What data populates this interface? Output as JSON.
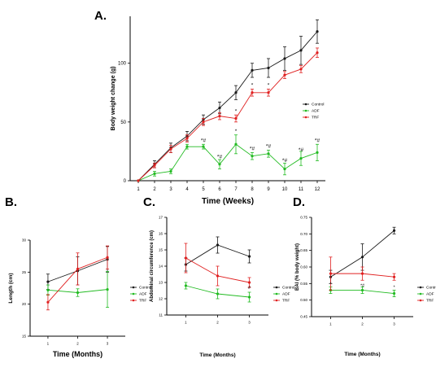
{
  "colors": {
    "Control": "#1a1a1a",
    "ADF": "#22bb22",
    "TRF": "#e02020"
  },
  "chart_data": [
    {
      "panel": "A.",
      "type": "line",
      "xlabel": "Time (Weeks)",
      "ylabel": "Body weight change (g)",
      "x": [
        "1",
        "2",
        "3",
        "4",
        "5",
        "6",
        "7",
        "8",
        "9",
        "10",
        "11",
        "12"
      ],
      "ylim": [
        0,
        140
      ],
      "yticks": [
        "0",
        "50",
        "100"
      ],
      "ytick_values": [
        0,
        50,
        100
      ],
      "legend": "right",
      "series": [
        {
          "name": "Control",
          "values": [
            0,
            14,
            28,
            38,
            52,
            62,
            75,
            94,
            96,
            104,
            111,
            127
          ],
          "errors": [
            0,
            3,
            4,
            4,
            4,
            5,
            6,
            6,
            8,
            10,
            12,
            10
          ]
        },
        {
          "name": "ADF",
          "values": [
            0,
            6,
            8,
            29,
            29,
            14,
            31,
            21,
            23,
            10,
            19,
            24
          ],
          "errors": [
            0,
            2,
            2,
            2,
            2,
            4,
            8,
            3,
            3,
            5,
            6,
            7
          ]
        },
        {
          "name": "TRF",
          "values": [
            0,
            13,
            27,
            36,
            50,
            55,
            53,
            75,
            75,
            90,
            95,
            109
          ],
          "errors": [
            0,
            2,
            3,
            3,
            3,
            3,
            3,
            3,
            3,
            3,
            3,
            4
          ]
        }
      ],
      "annotations": [
        {
          "x": "5",
          "y": 33,
          "text": "*#"
        },
        {
          "x": "6",
          "y": 19,
          "text": "*#"
        },
        {
          "x": "7",
          "y": 58,
          "text": "*"
        },
        {
          "x": "7",
          "y": 41,
          "text": "*"
        },
        {
          "x": "8",
          "y": 80,
          "text": "*"
        },
        {
          "x": "8",
          "y": 26,
          "text": "*#"
        },
        {
          "x": "9",
          "y": 80,
          "text": "*"
        },
        {
          "x": "9",
          "y": 28,
          "text": "*#"
        },
        {
          "x": "10",
          "y": 16,
          "text": "*#"
        },
        {
          "x": "11",
          "y": 25,
          "text": "*#"
        },
        {
          "x": "12",
          "y": 33,
          "text": "*#"
        }
      ]
    },
    {
      "panel": "B.",
      "type": "line",
      "xlabel": "Time (Months)",
      "ylabel": "Length (cm)",
      "x": [
        "1",
        "2",
        "3"
      ],
      "ylim": [
        15,
        30
      ],
      "yticks": [
        "15",
        "20",
        "25",
        "30"
      ],
      "ytick_values": [
        15,
        20,
        25,
        30
      ],
      "legend": "right",
      "series": [
        {
          "name": "Control",
          "values": [
            23.5,
            25.2,
            27.0
          ],
          "errors": [
            1.2,
            2.2,
            2.0
          ]
        },
        {
          "name": "ADF",
          "values": [
            22.2,
            21.8,
            22.3
          ],
          "errors": [
            0.8,
            0.6,
            2.8
          ]
        },
        {
          "name": "TRF",
          "values": [
            20.3,
            25.5,
            27.3
          ],
          "errors": [
            1.2,
            2.5,
            1.8
          ]
        }
      ]
    },
    {
      "panel": "C.",
      "type": "line",
      "xlabel": "Time (Months)",
      "ylabel": "Abdominal circumference (cm)",
      "x": [
        "1",
        "2",
        "3"
      ],
      "ylim": [
        11,
        17
      ],
      "yticks": [
        "11",
        "12",
        "13",
        "14",
        "15",
        "16",
        "17"
      ],
      "ytick_values": [
        11,
        12,
        13,
        14,
        15,
        16,
        17
      ],
      "legend": "right",
      "series": [
        {
          "name": "Control",
          "values": [
            14.1,
            15.3,
            14.6
          ],
          "errors": [
            0.4,
            0.5,
            0.4
          ]
        },
        {
          "name": "ADF",
          "values": [
            12.8,
            12.3,
            12.1
          ],
          "errors": [
            0.2,
            0.3,
            0.3
          ]
        },
        {
          "name": "TRF",
          "values": [
            14.5,
            13.4,
            13.0
          ],
          "errors": [
            0.9,
            0.6,
            0.3
          ]
        }
      ],
      "annotations": [
        {
          "x": "3",
          "y": 12.6,
          "text": "#"
        }
      ]
    },
    {
      "panel": "D.",
      "type": "line",
      "xlabel": "Time (Months)",
      "ylabel": "BAI (% body weight)",
      "x": [
        "1",
        "2",
        "3"
      ],
      "ylim": [
        0.45,
        0.75
      ],
      "yticks": [
        "0.45",
        "0.50",
        "0.55",
        "0.60",
        "0.65",
        "0.70",
        "0.75"
      ],
      "ytick_values": [
        0.45,
        0.5,
        0.55,
        0.6,
        0.65,
        0.7,
        0.75
      ],
      "legend": "right",
      "series": [
        {
          "name": "Control",
          "values": [
            0.57,
            0.63,
            0.71
          ],
          "errors": [
            0.02,
            0.04,
            0.01
          ]
        },
        {
          "name": "ADF",
          "values": [
            0.53,
            0.53,
            0.52
          ],
          "errors": [
            0.01,
            0.01,
            0.01
          ]
        },
        {
          "name": "TRF",
          "values": [
            0.58,
            0.58,
            0.57
          ],
          "errors": [
            0.05,
            0.02,
            0.01
          ]
        }
      ],
      "annotations": [
        {
          "x": "1",
          "y": 0.545,
          "text": "*"
        },
        {
          "x": "2",
          "y": 0.54,
          "text": "*#"
        },
        {
          "x": "3",
          "y": 0.535,
          "text": "*"
        }
      ]
    }
  ]
}
